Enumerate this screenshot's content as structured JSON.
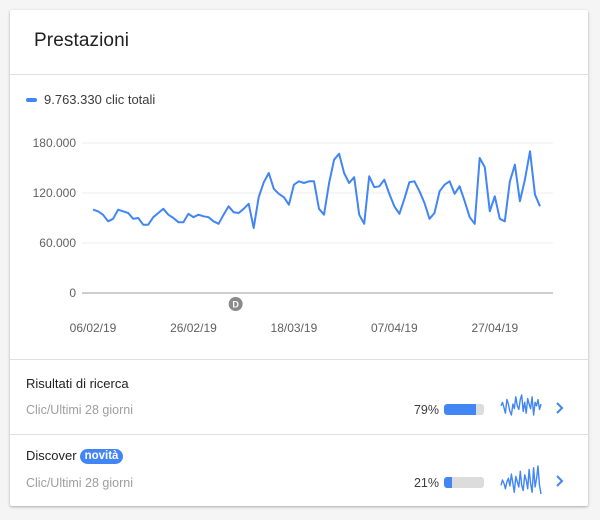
{
  "card": {
    "title": "Prestazioni"
  },
  "legend": {
    "label": "9.763.330 clic totali",
    "color": "#4285f4"
  },
  "chart_data": {
    "type": "line",
    "title": "Prestazioni",
    "series": [
      {
        "name": "9.763.330 clic totali",
        "color": "#4285f4",
        "values": [
          100000,
          98000,
          94000,
          86000,
          89000,
          100000,
          98000,
          96000,
          89000,
          90000,
          82000,
          82000,
          91000,
          96000,
          101000,
          94000,
          90000,
          85000,
          85000,
          95000,
          91000,
          94000,
          92000,
          91000,
          86000,
          83000,
          94000,
          104000,
          97000,
          96000,
          101000,
          107000,
          78000,
          115000,
          133000,
          144000,
          125000,
          119000,
          115000,
          106000,
          130000,
          134000,
          132000,
          134000,
          134000,
          101000,
          94000,
          132000,
          160000,
          167000,
          144000,
          132000,
          139000,
          94000,
          83000,
          140000,
          127000,
          128000,
          136000,
          119000,
          104000,
          95000,
          113000,
          133000,
          134000,
          122000,
          108000,
          89000,
          96000,
          122000,
          130000,
          134000,
          119000,
          128000,
          110000,
          91000,
          83000,
          162000,
          151000,
          98000,
          116000,
          89000,
          86000,
          134000,
          154000,
          110000,
          136000,
          170000,
          118000,
          104000
        ]
      }
    ],
    "x_start": "06/02/19",
    "x_ticks": [
      "06/02/19",
      "26/02/19",
      "18/03/19",
      "07/04/19",
      "27/04/19"
    ],
    "y_ticks": [
      "180.000",
      "120.000",
      "60.000",
      "0"
    ],
    "y_tick_values": [
      180000,
      120000,
      60000,
      0
    ],
    "ylim": [
      0,
      180000
    ],
    "xlabel": "",
    "ylabel": "",
    "grid": true,
    "legend_position": "top-left",
    "annotations": [
      {
        "label": "D",
        "x_index": 29
      }
    ]
  },
  "annotation": {
    "label": "D"
  },
  "rows": [
    {
      "title": "Risultati di ricerca",
      "badge": "",
      "subtitle": "Clic/Ultimi 28 giorni",
      "percent": "79%",
      "percent_value": 79,
      "sparkline": [
        48,
        52,
        46,
        40,
        55,
        50,
        42,
        38,
        50,
        45,
        58,
        48,
        44,
        55,
        60,
        42,
        52,
        40,
        56,
        50,
        45,
        58,
        38,
        52,
        48,
        55,
        44,
        50
      ]
    },
    {
      "title": "Discover",
      "badge": "novità",
      "subtitle": "Clic/Ultimi 28 giorni",
      "percent": "21%",
      "percent_value": 21,
      "sparkline": [
        40,
        55,
        45,
        30,
        50,
        60,
        38,
        72,
        45,
        20,
        65,
        50,
        35,
        80,
        40,
        25,
        70,
        55,
        30,
        85,
        45,
        20,
        90,
        35,
        60,
        95,
        40,
        15
      ]
    }
  ],
  "colors": {
    "accent": "#4285f4",
    "bar_track": "#dcdcdc"
  }
}
